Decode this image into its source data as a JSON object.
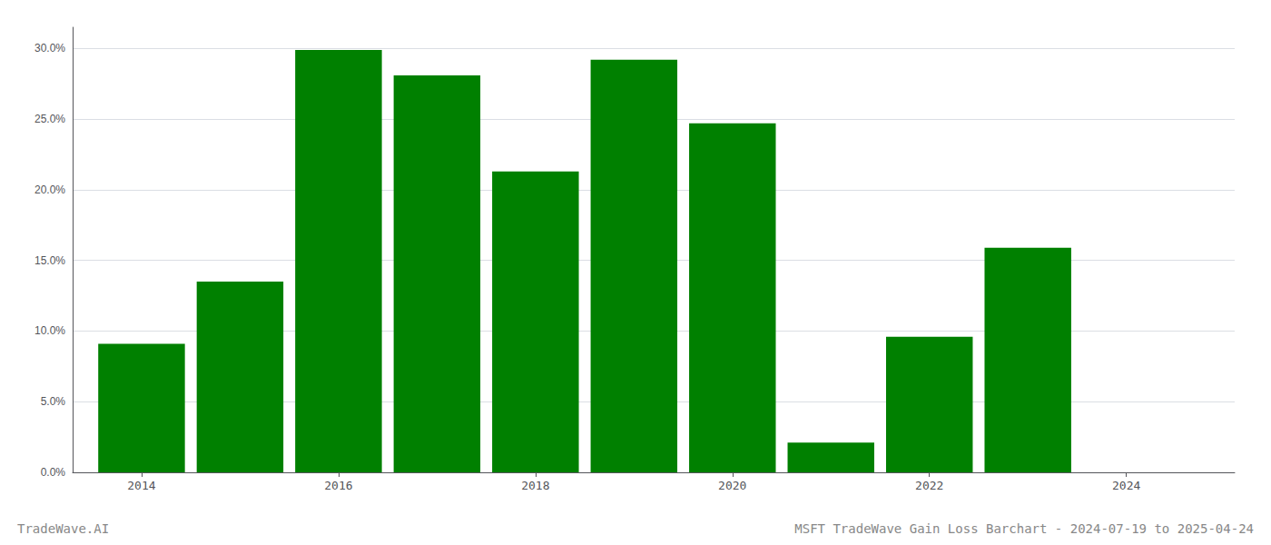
{
  "chart_data": {
    "type": "bar",
    "title": "MSFT TradeWave Gain Loss Barchart - 2024-07-19 to 2025-04-24",
    "annotations": [
      "TradeWave.AI"
    ],
    "x": [
      2014,
      2015,
      2016,
      2017,
      2018,
      2019,
      2020,
      2021,
      2022,
      2023
    ],
    "values": [
      0.091,
      0.135,
      0.299,
      0.281,
      0.213,
      0.292,
      0.247,
      0.021,
      0.096,
      0.159
    ],
    "color": "#008000",
    "xlim": [
      2013.3,
      2025.1
    ],
    "xticks": [
      2014,
      2016,
      2018,
      2020,
      2022,
      2024
    ],
    "ylim": [
      0.0,
      0.315
    ],
    "yticks": [
      {
        "value": 0.0,
        "label": "0.0%"
      },
      {
        "value": 0.05,
        "label": "5.0%"
      },
      {
        "value": 0.1,
        "label": "10.0%"
      },
      {
        "value": 0.15,
        "label": "15.0%"
      },
      {
        "value": 0.2,
        "label": "20.0%"
      },
      {
        "value": 0.25,
        "label": "25.0%"
      },
      {
        "value": 0.3,
        "label": "30.0%"
      }
    ],
    "grid": true
  }
}
